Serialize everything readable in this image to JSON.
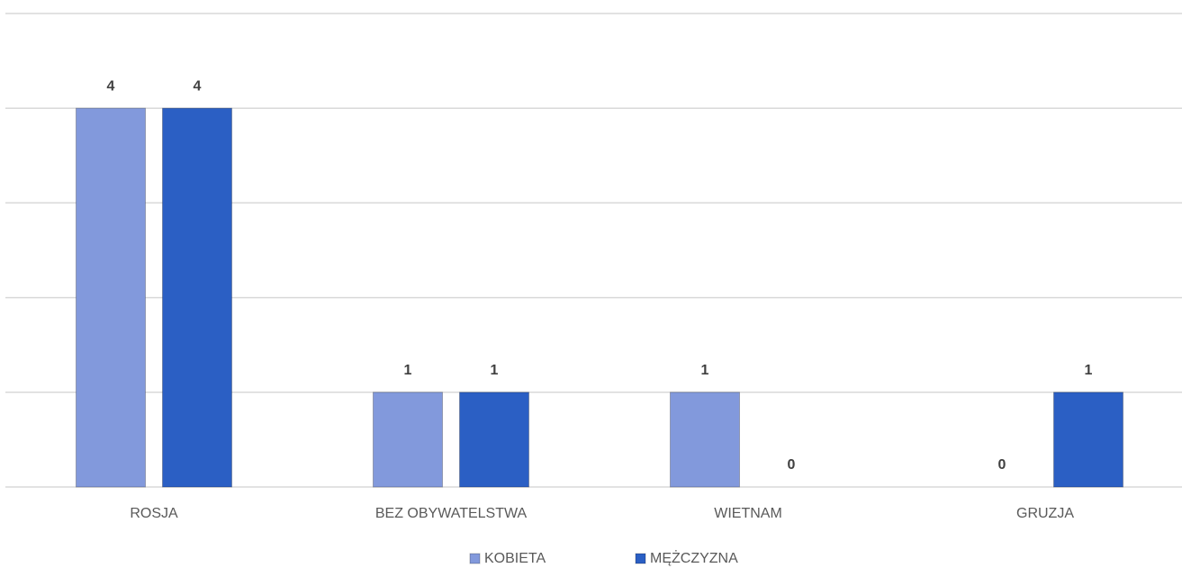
{
  "chart_data": {
    "type": "bar",
    "categories": [
      "ROSJA",
      "BEZ OBYWATELSTWA",
      "WIETNAM",
      "GRUZJA"
    ],
    "series": [
      {
        "name": "KOBIETA",
        "color": "#8299dc",
        "values": [
          4,
          1,
          1,
          0
        ]
      },
      {
        "name": "MĘŻCZYZNA",
        "color": "#2b5fc4",
        "values": [
          4,
          1,
          0,
          1
        ]
      }
    ],
    "ylim": [
      0,
      5
    ],
    "yticks": [
      0,
      1,
      2,
      3,
      4,
      5
    ],
    "grid": true,
    "legend": "bottom"
  }
}
